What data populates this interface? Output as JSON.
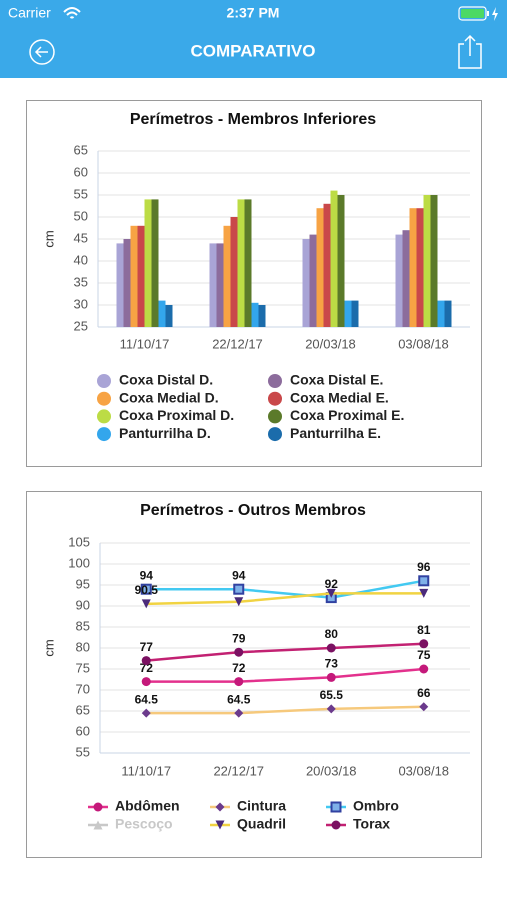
{
  "status_bar": {
    "carrier": "Carrier",
    "time": "2:37 PM"
  },
  "nav": {
    "title": "COMPARATIVO"
  },
  "chart_data": [
    {
      "type": "bar",
      "title": "Perímetros - Membros Inferiores",
      "ylabel": "cm",
      "categories": [
        "11/10/17",
        "22/12/17",
        "20/03/18",
        "03/08/18"
      ],
      "ylim": [
        25,
        65
      ],
      "yticks": [
        25,
        30,
        35,
        40,
        45,
        50,
        55,
        60,
        65
      ],
      "grid": true,
      "series": [
        {
          "name": "Coxa Distal D.",
          "color": "#a9a4d6",
          "values": [
            44,
            44,
            45,
            46
          ]
        },
        {
          "name": "Coxa Distal E.",
          "color": "#8c6c9c",
          "values": [
            45,
            44,
            46,
            47
          ]
        },
        {
          "name": "Coxa Medial D.",
          "color": "#f7a344",
          "values": [
            48,
            48,
            52,
            52
          ]
        },
        {
          "name": "Coxa Medial E.",
          "color": "#c9484a",
          "values": [
            48,
            50,
            53,
            52
          ]
        },
        {
          "name": "Coxa Proximal D.",
          "color": "#bcdc45",
          "values": [
            54,
            54,
            56,
            55
          ]
        },
        {
          "name": "Coxa Proximal E.",
          "color": "#5b7a2a",
          "values": [
            54,
            54,
            55,
            55
          ]
        },
        {
          "name": "Panturrilha D.",
          "color": "#33a6ec",
          "values": [
            31,
            30.5,
            31,
            31
          ]
        },
        {
          "name": "Panturrilha E.",
          "color": "#1b6cab",
          "values": [
            30,
            30,
            31,
            31
          ]
        }
      ]
    },
    {
      "type": "line",
      "title": "Perímetros - Outros Membros",
      "ylabel": "cm",
      "categories": [
        "11/10/17",
        "22/12/17",
        "20/03/18",
        "03/08/18"
      ],
      "ylim": [
        55,
        105
      ],
      "yticks": [
        55,
        60,
        65,
        70,
        75,
        80,
        85,
        90,
        95,
        100,
        105
      ],
      "grid": true,
      "series": [
        {
          "name": "Abdômen",
          "color": "#e3318d",
          "marker": "circle",
          "marker_color": "#c4197a",
          "values": [
            72,
            72,
            73,
            75
          ],
          "value_labels": [
            "72",
            "72",
            "73",
            "75"
          ]
        },
        {
          "name": "Cintura",
          "color": "#f6c97c",
          "marker": "diamond",
          "marker_color": "#6b3a8c",
          "values": [
            64.5,
            64.5,
            65.5,
            66
          ],
          "value_labels": [
            "64.5",
            "64.5",
            "65.5",
            "66"
          ]
        },
        {
          "name": "Ombro",
          "color": "#43c9f1",
          "marker": "square",
          "marker_color": "#3141a1",
          "values": [
            94,
            94,
            92,
            96
          ],
          "value_labels": [
            "94",
            "94",
            "92",
            "96"
          ]
        },
        {
          "name": "Pescoço",
          "color": "#c8c8c8",
          "marker": "triangle",
          "marker_color": "#c8c8c8",
          "hidden": true,
          "values": [
            null,
            null,
            null,
            null
          ]
        },
        {
          "name": "Quadril",
          "color": "#f1d342",
          "marker": "triangle-down",
          "marker_color": "#4b2b7b",
          "values": [
            90.5,
            91,
            93,
            93
          ],
          "value_labels": [
            "90.5",
            null,
            null,
            null
          ]
        },
        {
          "name": "Torax",
          "color": "#c22172",
          "marker": "circle",
          "marker_color": "#7b1162",
          "values": [
            77,
            79,
            80,
            81
          ],
          "value_labels": [
            "77",
            "79",
            "80",
            "81"
          ]
        }
      ]
    }
  ]
}
